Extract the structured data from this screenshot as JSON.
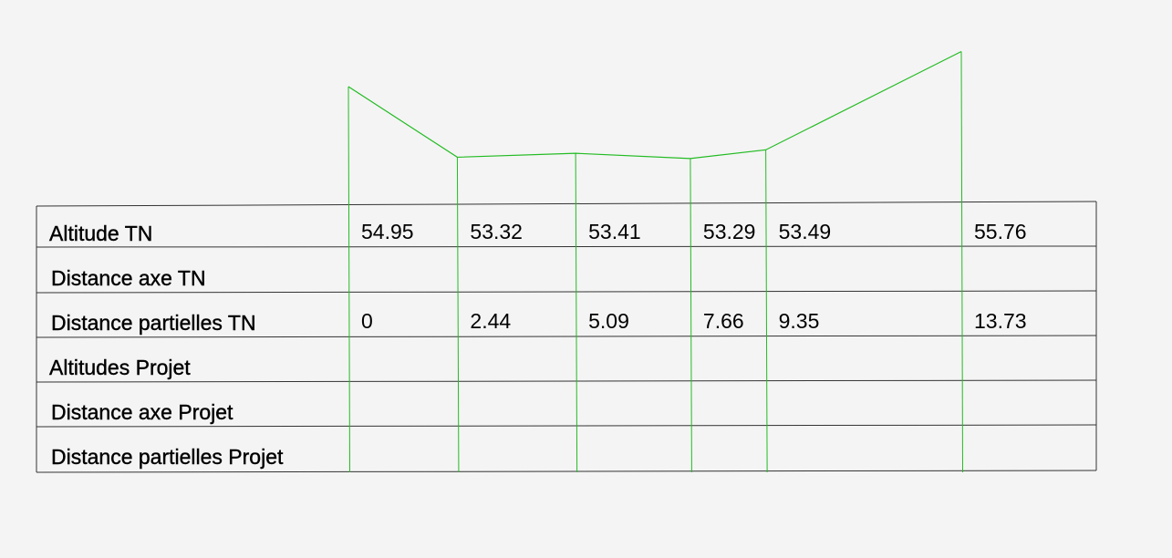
{
  "chart_data": {
    "type": "line",
    "rows": [
      "Altitude TN",
      "Distance axe TN",
      "Distance partielles TN",
      "Altitudes Projet",
      "Distance axe Projet",
      "Distance partielles Projet"
    ],
    "x": [
      0,
      2.44,
      5.09,
      7.66,
      9.35,
      13.73
    ],
    "x_labels": [
      "0",
      "2.44",
      "5.09",
      "7.66",
      "9.35",
      "13.73"
    ],
    "altitude": [
      54.95,
      53.32,
      53.41,
      53.29,
      53.49,
      55.76
    ],
    "altitude_labels": [
      "54.95",
      "53.32",
      "53.41",
      "53.29",
      "53.49",
      "55.76"
    ],
    "line_color": "#22bb22",
    "grid_color": "#333333"
  }
}
